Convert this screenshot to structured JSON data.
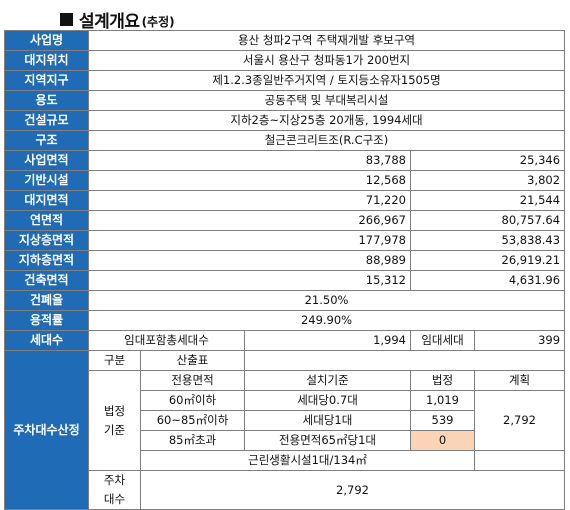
{
  "title": {
    "main": "설계개요",
    "sub": "(추정)"
  },
  "rows": {
    "project_name": {
      "label": "사업명",
      "value": "용산 청파2구역 주택재개발 후보구역"
    },
    "location": {
      "label": "대지위치",
      "value": "서울시 용산구 청파동1가 200번지"
    },
    "zoning": {
      "label": "지역지구",
      "value": "제1.2.3종일반주거지역 / 토지등소유자1505명"
    },
    "use": {
      "label": "용도",
      "value": "공동주택 및 부대복리시설"
    },
    "scale": {
      "label": "건설규모",
      "value": "지하2층~지상25층 20개동, 1994세대"
    },
    "structure": {
      "label": "구조",
      "value": "철근콘크리트조(R.C구조)"
    },
    "project_area": {
      "label": "사업면적",
      "v1": "83,788",
      "v2": "25,346"
    },
    "infrastructure": {
      "label": "기반시설",
      "v1": "12,568",
      "v2": "3,802"
    },
    "site_area": {
      "label": "대지면적",
      "v1": "71,220",
      "v2": "21,544"
    },
    "gross_area": {
      "label": "연면적",
      "v1": "266,967",
      "v2": "80,757.64"
    },
    "above_ground": {
      "label": "지상층면적",
      "v1": "177,978",
      "v2": "53,838.43"
    },
    "underground": {
      "label": "지하층면적",
      "v1": "88,989",
      "v2": "26,919.21"
    },
    "building_area": {
      "label": "건축면적",
      "v1": "15,312",
      "v2": "4,631.96"
    },
    "coverage": {
      "label": "건폐율",
      "value": "21.50%"
    },
    "far": {
      "label": "용적률",
      "value": "249.90%"
    },
    "households": {
      "label": "세대수",
      "total_label": "임대포함총세대수",
      "total": "1,994",
      "rental_label": "임대세대",
      "rental": "399"
    }
  },
  "parking": {
    "label": "주차대수산정",
    "h_div": "구분",
    "h_calc": "산출표",
    "h_area": "전용면적",
    "h_standard": "설치기준",
    "h_legal": "법정",
    "h_plan": "계획",
    "legal_label": "법정\n기준",
    "rows": [
      {
        "area": "60㎡이하",
        "standard": "세대당0.7대",
        "legal": "1,019"
      },
      {
        "area": "60~85㎡이하",
        "standard": "세대당1대",
        "legal": "539"
      },
      {
        "area": "85㎡초과",
        "standard": "전용면적65㎡당1대",
        "legal": "0"
      }
    ],
    "plan": "2,792",
    "note": "근린생활시설1대/134㎡",
    "total_label": "주차\n대수",
    "total": "2,792"
  },
  "colors": {
    "label_bg": "#1f6bb5",
    "highlight": "#fad4b4",
    "border": "#7f7f7f"
  }
}
